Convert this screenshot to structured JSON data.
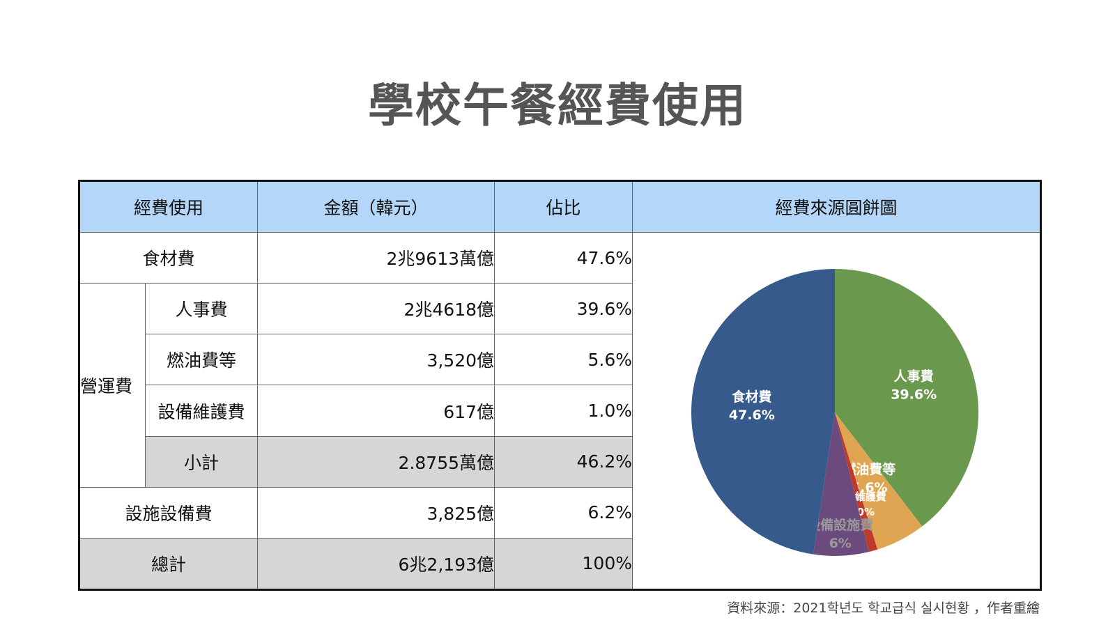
{
  "title": "學校午餐經費使用",
  "table": {
    "headers": [
      "經費使用",
      "金額（韓元）",
      "佔比",
      "經費來源圓餅圖"
    ],
    "rows": {
      "food": {
        "label": "食材費",
        "amount": "2兆9613萬億",
        "share": "47.6%"
      },
      "operating_group": "營運費",
      "personnel": {
        "label": "人事費",
        "amount": "2兆4618億",
        "share": "39.6%"
      },
      "fuel": {
        "label": "燃油費等",
        "amount": "3,520億",
        "share": "5.6%"
      },
      "maintenance": {
        "label": "設備維護費",
        "amount": "617億",
        "share": "1.0%"
      },
      "subtotal": {
        "label": "小計",
        "amount": "2.8755萬億",
        "share": "46.2%"
      },
      "facility": {
        "label": "設施設備費",
        "amount": "3,825億",
        "share": "6.2%"
      },
      "total": {
        "label": "總計",
        "amount": "6兆2,193億",
        "share": "100%"
      }
    }
  },
  "chart_data": {
    "type": "pie",
    "slices": [
      {
        "label": "人事費",
        "value": 39.6,
        "value_label": "39.6%",
        "color": "#6a994e",
        "label_color": "#ffffff"
      },
      {
        "label": "燃油費等",
        "value": 5.6,
        "value_label": "5.6%",
        "color": "#e0a552",
        "label_color": "#ffffff"
      },
      {
        "label": "設備維護費",
        "value": 1.0,
        "value_label": "1.0%",
        "color": "#c0392b",
        "label_color": "#ffffff"
      },
      {
        "label": "設備設施費",
        "value": 6.2,
        "value_label": "6%",
        "color": "#6b4a7d",
        "label_color": "#9a9a9a"
      },
      {
        "label": "食材費",
        "value": 47.6,
        "value_label": "47.6%",
        "color": "#375a8c",
        "label_color": "#ffffff"
      }
    ]
  },
  "source": "資料來源：2021학년도 학교급식 실시현황 ，作者重繪"
}
